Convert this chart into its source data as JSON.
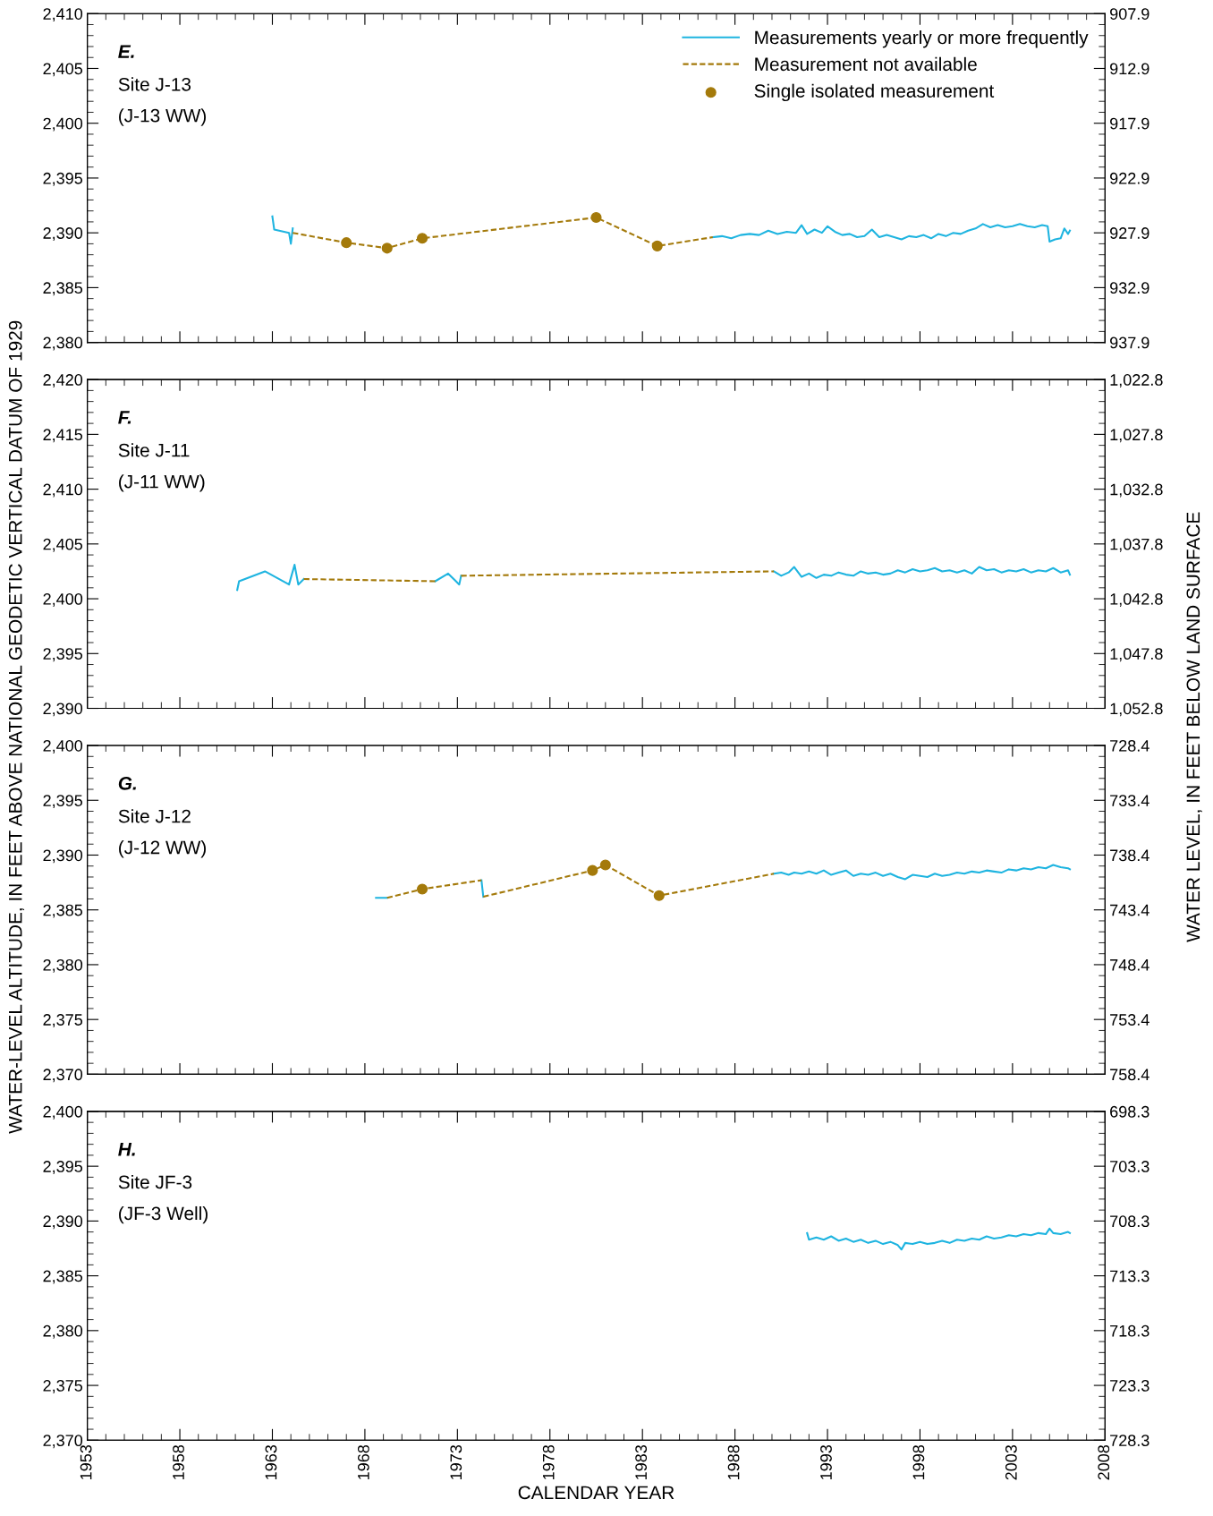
{
  "chart_data": [
    {
      "type": "line",
      "title": "E.",
      "annotations": [
        "Site J-13",
        "(J-13 WW)"
      ],
      "ylabel": "WATER-LEVEL ALTITUDE, IN FEET ABOVE NATIONAL GEODETIC VERTICAL DATUM OF 1929",
      "y2label": "WATER LEVEL, IN FEET BELOW LAND SURFACE",
      "xlim": [
        1953,
        2008
      ],
      "xticks": [
        1953,
        1958,
        1963,
        1968,
        1973,
        1978,
        1983,
        1988,
        1993,
        1998,
        2003,
        2008
      ],
      "ylim": [
        2380,
        2410
      ],
      "yticks": [
        {
          "value": 2380,
          "label": "2,380"
        },
        {
          "value": 2385,
          "label": "2,385"
        },
        {
          "value": 2390,
          "label": "2,390"
        },
        {
          "value": 2395,
          "label": "2,395"
        },
        {
          "value": 2400,
          "label": "2,400"
        },
        {
          "value": 2405,
          "label": "2,405"
        },
        {
          "value": 2410,
          "label": "2,410"
        }
      ],
      "y2lim": [
        937.9,
        907.9
      ],
      "y2ticks": [
        907.9,
        912.9,
        917.9,
        922.9,
        927.9,
        932.9,
        937.9
      ],
      "tick_labels": "y",
      "legend": "top right",
      "series": [
        {
          "name": "Measurements yearly or more frequently",
          "type": "line",
          "line_style": "solid",
          "color": "#1eb4e0",
          "x": [
            1963.0,
            1963.1,
            1963.9,
            1964.0,
            1964.1,
            1975.0,
            1986.8,
            1987.3,
            1987.8,
            1988.3,
            1988.8,
            1989.3,
            1989.8,
            1990.3,
            1990.8,
            1991.3,
            1991.6,
            1991.9,
            1992.3,
            1992.7,
            1993.0,
            1993.4,
            1993.8,
            1994.2,
            1994.6,
            1995.0,
            1995.4,
            1995.8,
            1996.2,
            1996.6,
            1997.0,
            1997.4,
            1997.8,
            1998.2,
            1998.6,
            1999.0,
            1999.4,
            1999.8,
            2000.2,
            2000.6,
            2001.0,
            2001.4,
            2001.8,
            2002.2,
            2002.6,
            2003.0,
            2003.4,
            2003.8,
            2004.2,
            2004.6,
            2004.9,
            2005.0,
            2005.3,
            2005.6,
            2005.8,
            2006.0,
            2006.1
          ],
          "values": [
            2391.5,
            2390.3,
            2390.0,
            2389.0,
            2390.4,
            null,
            2389.6,
            2389.7,
            2389.5,
            2389.8,
            2389.9,
            2389.8,
            2390.2,
            2389.9,
            2390.1,
            2390.0,
            2390.7,
            2389.9,
            2390.3,
            2390.0,
            2390.6,
            2390.1,
            2389.8,
            2389.9,
            2389.6,
            2389.7,
            2390.3,
            2389.6,
            2389.8,
            2389.6,
            2389.4,
            2389.7,
            2389.6,
            2389.8,
            2389.5,
            2389.9,
            2389.7,
            2390.0,
            2389.9,
            2390.2,
            2390.4,
            2390.8,
            2390.5,
            2390.7,
            2390.5,
            2390.6,
            2390.8,
            2390.6,
            2390.5,
            2390.7,
            2390.6,
            2389.2,
            2389.4,
            2389.5,
            2390.4,
            2389.9,
            2390.2
          ]
        },
        {
          "name": "Measurement not available",
          "type": "line",
          "line_style": "dashed",
          "color": "#a47a0b",
          "x": [
            1964.1,
            1967.0,
            1969.2,
            1971.1,
            1980.5,
            1983.8,
            1986.8
          ],
          "values": [
            2390.0,
            2389.1,
            2388.6,
            2389.5,
            2391.4,
            2388.8,
            2389.6
          ]
        },
        {
          "name": "Single isolated measurement",
          "type": "scatter",
          "marker": "circle",
          "color": "#a47a0b",
          "x": [
            1967.0,
            1969.2,
            1971.1,
            1980.5,
            1983.8
          ],
          "values": [
            2389.1,
            2388.6,
            2389.5,
            2391.4,
            2388.8
          ]
        }
      ]
    },
    {
      "type": "line",
      "title": "F.",
      "annotations": [
        "Site J-11",
        "(J-11 WW)"
      ],
      "xlim": [
        1953,
        2008
      ],
      "xticks": [
        1953,
        1958,
        1963,
        1968,
        1973,
        1978,
        1983,
        1988,
        1993,
        1998,
        2003,
        2008
      ],
      "ylim": [
        2390,
        2420
      ],
      "yticks": [
        {
          "value": 2390,
          "label": "2,390"
        },
        {
          "value": 2395,
          "label": "2,395"
        },
        {
          "value": 2400,
          "label": "2,400"
        },
        {
          "value": 2405,
          "label": "2,405"
        },
        {
          "value": 2410,
          "label": "2,410"
        },
        {
          "value": 2415,
          "label": "2,415"
        },
        {
          "value": 2420,
          "label": "2,420"
        }
      ],
      "y2lim": [
        1052.8,
        1022.8
      ],
      "y2ticks": [
        {
          "value": 1022.8,
          "label": "1,022.8"
        },
        {
          "value": 1027.8,
          "label": "1,027.8"
        },
        {
          "value": 1032.8,
          "label": "1,032.8"
        },
        {
          "value": 1037.8,
          "label": "1,037.8"
        },
        {
          "value": 1042.8,
          "label": "1,042.8"
        },
        {
          "value": 1047.8,
          "label": "1,047.8"
        },
        {
          "value": 1052.8,
          "label": "1,052.8"
        }
      ],
      "tick_labels": "y",
      "series": [
        {
          "type": "line",
          "line_style": "solid",
          "color": "#1eb4e0",
          "x": [
            1961.1,
            1961.2,
            1962.6,
            1963.9,
            1964.2,
            1964.4,
            1964.7,
            1968.0,
            1971.8,
            1972.5,
            1973.1,
            1973.2,
            1980.0,
            1990.1,
            1990.5,
            1990.9,
            1991.2,
            1991.6,
            1992.0,
            1992.4,
            1992.8,
            1993.2,
            1993.6,
            1994.0,
            1994.4,
            1994.8,
            1995.2,
            1995.6,
            1996.0,
            1996.4,
            1996.8,
            1997.2,
            1997.6,
            1998.0,
            1998.4,
            1998.8,
            1999.2,
            1999.6,
            2000.0,
            2000.4,
            2000.8,
            2001.2,
            2001.6,
            2002.0,
            2002.4,
            2002.8,
            2003.2,
            2003.6,
            2004.0,
            2004.4,
            2004.8,
            2005.2,
            2005.6,
            2006.0,
            2006.1
          ],
          "values": [
            2400.8,
            2401.6,
            2402.5,
            2401.3,
            2403.1,
            2401.3,
            2401.8,
            null,
            2401.6,
            2402.3,
            2401.3,
            2402.1,
            null,
            2402.5,
            2402.1,
            2402.4,
            2402.9,
            2402.0,
            2402.3,
            2401.9,
            2402.2,
            2402.1,
            2402.4,
            2402.2,
            2402.1,
            2402.5,
            2402.3,
            2402.4,
            2402.2,
            2402.3,
            2402.6,
            2402.4,
            2402.7,
            2402.5,
            2402.6,
            2402.8,
            2402.5,
            2402.6,
            2402.4,
            2402.6,
            2402.3,
            2402.9,
            2402.6,
            2402.7,
            2402.4,
            2402.6,
            2402.5,
            2402.7,
            2402.4,
            2402.6,
            2402.5,
            2402.8,
            2402.4,
            2402.6,
            2402.2
          ]
        },
        {
          "type": "line",
          "line_style": "dashed",
          "color": "#a47a0b",
          "x": [
            1964.7,
            1971.8,
            1972.5,
            1973.2,
            1990.1
          ],
          "values": [
            2401.8,
            2401.6,
            null,
            2402.1,
            2402.5
          ]
        }
      ]
    },
    {
      "type": "line",
      "title": "G.",
      "annotations": [
        "Site J-12",
        "(J-12 WW)"
      ],
      "xlim": [
        1953,
        2008
      ],
      "xticks": [
        1953,
        1958,
        1963,
        1968,
        1973,
        1978,
        1983,
        1988,
        1993,
        1998,
        2003,
        2008
      ],
      "ylim": [
        2370,
        2400
      ],
      "yticks": [
        {
          "value": 2370,
          "label": "2,370"
        },
        {
          "value": 2375,
          "label": "2,375"
        },
        {
          "value": 2380,
          "label": "2,380"
        },
        {
          "value": 2385,
          "label": "2,385"
        },
        {
          "value": 2390,
          "label": "2,390"
        },
        {
          "value": 2395,
          "label": "2,395"
        },
        {
          "value": 2400,
          "label": "2,400"
        }
      ],
      "y2lim": [
        758.4,
        728.4
      ],
      "y2ticks": [
        728.4,
        733.4,
        738.4,
        743.4,
        748.4,
        753.4,
        758.4
      ],
      "tick_labels": "y",
      "series": [
        {
          "type": "line",
          "line_style": "solid",
          "color": "#1eb4e0",
          "x": [
            1968.6,
            1969.2,
            1972.0,
            1974.3,
            1974.4,
            1980.0,
            1990.1,
            1990.5,
            1990.9,
            1991.2,
            1991.6,
            1992.0,
            1992.4,
            1992.8,
            1993.2,
            1993.6,
            1994.0,
            1994.4,
            1994.8,
            1995.2,
            1995.6,
            1996.0,
            1996.4,
            1996.8,
            1997.2,
            1997.6,
            1998.0,
            1998.4,
            1998.8,
            1999.2,
            1999.6,
            2000.0,
            2000.4,
            2000.8,
            2001.2,
            2001.6,
            2002.0,
            2002.4,
            2002.8,
            2003.2,
            2003.6,
            2004.0,
            2004.4,
            2004.8,
            2005.2,
            2005.6,
            2006.0,
            2006.1
          ],
          "values": [
            2386.1,
            2386.1,
            null,
            2387.7,
            2386.2,
            null,
            2388.3,
            2388.4,
            2388.2,
            2388.4,
            2388.3,
            2388.5,
            2388.3,
            2388.6,
            2388.2,
            2388.4,
            2388.6,
            2388.1,
            2388.3,
            2388.2,
            2388.4,
            2388.1,
            2388.3,
            2388.0,
            2387.8,
            2388.2,
            2388.1,
            2388.0,
            2388.3,
            2388.1,
            2388.2,
            2388.4,
            2388.3,
            2388.5,
            2388.4,
            2388.6,
            2388.5,
            2388.4,
            2388.7,
            2388.6,
            2388.8,
            2388.7,
            2388.9,
            2388.8,
            2389.1,
            2388.9,
            2388.8,
            2388.7
          ]
        },
        {
          "type": "line",
          "line_style": "dashed",
          "color": "#a47a0b",
          "x": [
            1969.2,
            1971.1,
            1974.3,
            1974.35,
            1974.4,
            1980.3,
            1981.0,
            1983.9,
            1990.1
          ],
          "values": [
            2386.1,
            2386.9,
            2387.7,
            null,
            2386.2,
            2388.6,
            2389.1,
            2386.3,
            2388.3
          ]
        },
        {
          "type": "scatter",
          "marker": "circle",
          "color": "#a47a0b",
          "x": [
            1971.1,
            1980.3,
            1981.0,
            1983.9
          ],
          "values": [
            2386.9,
            2388.6,
            2389.1,
            2386.3
          ]
        }
      ]
    },
    {
      "type": "line",
      "title": "H.",
      "annotations": [
        "Site JF-3",
        "(JF-3 Well)"
      ],
      "xlabel": "CALENDAR YEAR",
      "xlim": [
        1953,
        2008
      ],
      "xticks": [
        1953,
        1958,
        1963,
        1968,
        1973,
        1978,
        1983,
        1988,
        1993,
        1998,
        2003,
        2008
      ],
      "ylim": [
        2370,
        2400
      ],
      "yticks": [
        {
          "value": 2370,
          "label": "2,370"
        },
        {
          "value": 2375,
          "label": "2,375"
        },
        {
          "value": 2380,
          "label": "2,380"
        },
        {
          "value": 2385,
          "label": "2,385"
        },
        {
          "value": 2390,
          "label": "2,390"
        },
        {
          "value": 2395,
          "label": "2,395"
        },
        {
          "value": 2400,
          "label": "2,400"
        }
      ],
      "y2lim": [
        728.3,
        698.3
      ],
      "y2ticks": [
        698.3,
        703.3,
        708.3,
        713.3,
        718.3,
        723.3,
        728.3
      ],
      "series": [
        {
          "type": "line",
          "line_style": "solid",
          "color": "#1eb4e0",
          "x": [
            1991.9,
            1992.0,
            1992.4,
            1992.8,
            1993.2,
            1993.6,
            1994.0,
            1994.4,
            1994.8,
            1995.2,
            1995.6,
            1996.0,
            1996.4,
            1996.8,
            1997.0,
            1997.2,
            1997.6,
            1998.0,
            1998.4,
            1998.8,
            1999.2,
            1999.6,
            2000.0,
            2000.4,
            2000.8,
            2001.2,
            2001.6,
            2002.0,
            2002.4,
            2002.8,
            2003.2,
            2003.6,
            2004.0,
            2004.4,
            2004.8,
            2005.0,
            2005.2,
            2005.6,
            2006.0,
            2006.1
          ],
          "values": [
            2388.9,
            2388.3,
            2388.5,
            2388.3,
            2388.6,
            2388.2,
            2388.4,
            2388.1,
            2388.3,
            2388.0,
            2388.2,
            2387.9,
            2388.1,
            2387.8,
            2387.4,
            2388.0,
            2387.9,
            2388.1,
            2387.9,
            2388.0,
            2388.2,
            2388.0,
            2388.3,
            2388.2,
            2388.4,
            2388.3,
            2388.6,
            2388.4,
            2388.5,
            2388.7,
            2388.6,
            2388.8,
            2388.7,
            2388.9,
            2388.8,
            2389.3,
            2388.9,
            2388.8,
            2389.0,
            2388.9
          ]
        }
      ]
    }
  ]
}
